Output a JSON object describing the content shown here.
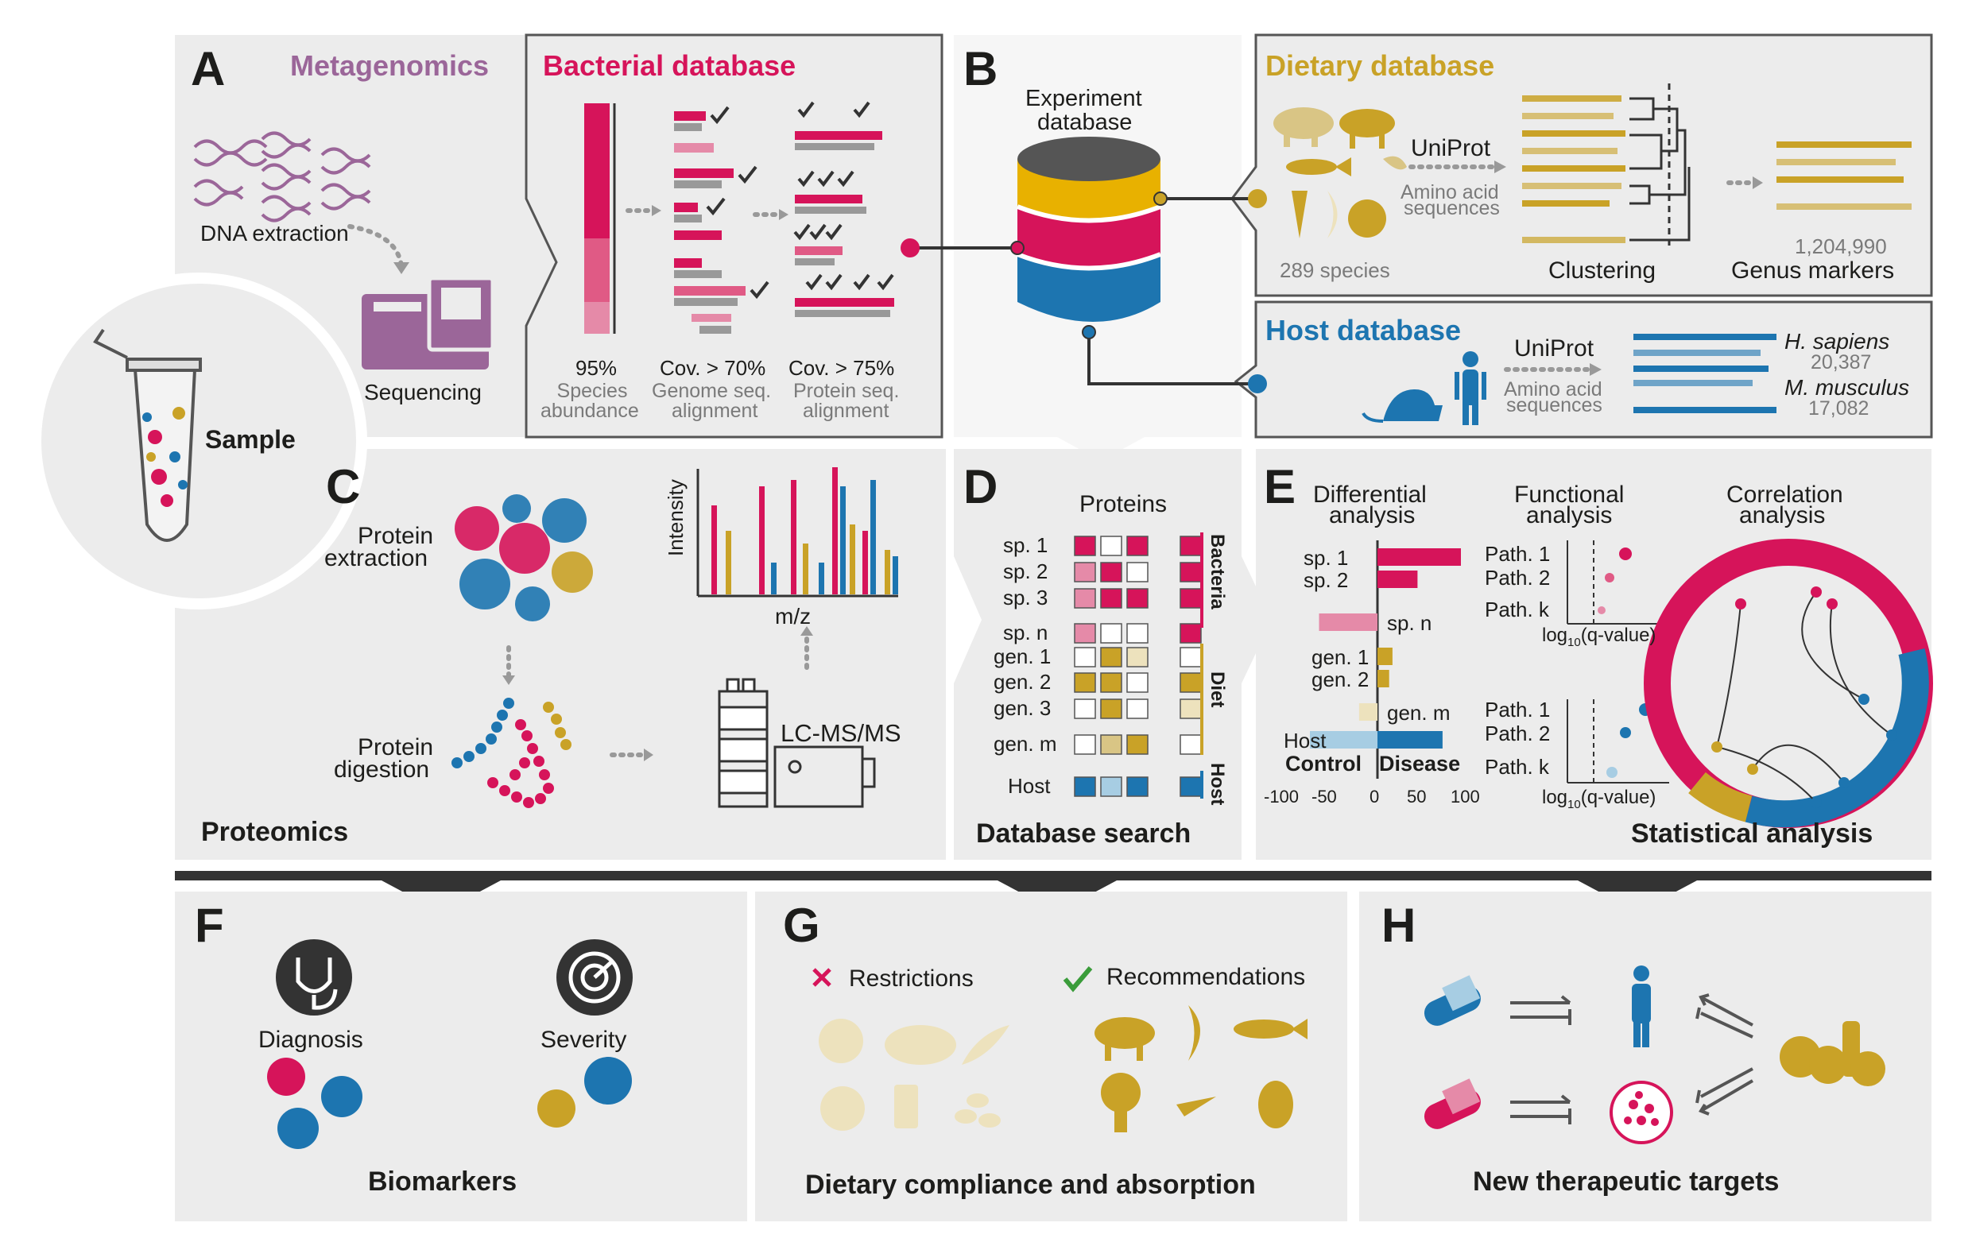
{
  "panels": {
    "A": {
      "letter": "A",
      "metagenomics": "Metagenomics",
      "dna_extraction": "DNA extraction",
      "sequencing": "Sequencing",
      "bacterial_database": "Bacterial database",
      "step1_value": "95%",
      "step1_l1": "Species",
      "step1_l2": "abundance",
      "step2_value": "Cov. > 70%",
      "step2_l1": "Genome seq.",
      "step2_l2": "alignment",
      "step3_value": "Cov. > 75%",
      "step3_l1": "Protein seq.",
      "step3_l2": "alignment"
    },
    "sample": "Sample",
    "B": {
      "letter": "B",
      "experiment_l1": "Experiment",
      "experiment_l2": "database",
      "dietary_database": "Dietary database",
      "uniprot": "UniProt",
      "aa_l1": "Amino acid",
      "aa_l2": "sequences",
      "species_count": "289 species",
      "clustering": "Clustering",
      "markers_count": "1,204,990",
      "genus_markers": "Genus markers",
      "host_database": "Host database",
      "host_uniprot": "UniProt",
      "host_aa_l1": "Amino acid",
      "host_aa_l2": "sequences",
      "h_sapiens": "H. sapiens",
      "h_sapiens_count": "20,387",
      "m_musculus": "M. musculus",
      "m_musculus_count": "17,082"
    },
    "C": {
      "letter": "C",
      "protein_extraction_l1": "Protein",
      "protein_extraction_l2": "extraction",
      "protein_digestion_l1": "Protein",
      "protein_digestion_l2": "digestion",
      "intensity": "Intensity",
      "mz": "m/z",
      "lcms": "LC-MS/MS",
      "proteomics": "Proteomics"
    },
    "D": {
      "letter": "D",
      "proteins": "Proteins",
      "rows_bacteria": [
        "sp. 1",
        "sp. 2",
        "sp. 3",
        "sp. n"
      ],
      "rows_diet": [
        "gen. 1",
        "gen. 2",
        "gen. 3",
        "gen. m"
      ],
      "row_host": "Host",
      "side_bacteria": "Bacteria",
      "side_diet": "Diet",
      "side_host": "Host",
      "database_search": "Database search"
    },
    "E": {
      "letter": "E",
      "diff_l1": "Differential",
      "diff_l2": "analysis",
      "func_l1": "Functional",
      "func_l2": "analysis",
      "corr_l1": "Correlation",
      "corr_l2": "analysis",
      "diff_rows": [
        "sp. 1",
        "sp. 2",
        "sp. n",
        "gen. 1",
        "gen. 2",
        "gen. m",
        "Host"
      ],
      "control": "Control",
      "disease": "Disease",
      "ticks": [
        "-100",
        "-50",
        "0",
        "50",
        "100"
      ],
      "path_top": [
        "Path. 1",
        "Path. 2",
        "Path. k"
      ],
      "path_bottom": [
        "Path. 1",
        "Path. 2",
        "Path. k"
      ],
      "xlabel_prefix": "log",
      "xlabel_sub": "10",
      "xlabel_suffix": "(q-value)",
      "statistical_analysis": "Statistical analysis"
    },
    "F": {
      "letter": "F",
      "diagnosis": "Diagnosis",
      "severity": "Severity",
      "title": "Biomarkers"
    },
    "G": {
      "letter": "G",
      "restrictions": "Restrictions",
      "recommendations": "Recommendations",
      "title": "Dietary compliance and absorption"
    },
    "H": {
      "letter": "H",
      "title": "New therapeutic targets"
    }
  },
  "colors": {
    "magenta": "#d6145a",
    "pink": "#e58aa8",
    "gold": "#c9a227",
    "lightgold": "#ede2bd",
    "blue": "#1d75b0",
    "lightblue": "#a7cde3",
    "purple": "#9b6699",
    "gray_panel": "#ececec",
    "dark": "#1d1d1b"
  },
  "chart_data": [
    {
      "type": "bar",
      "orientation": "horizontal",
      "categories": [
        "sp. 1",
        "sp. 2",
        "sp. n",
        "gen. 1",
        "gen. 2",
        "gen. m",
        "Host"
      ],
      "values": [
        100,
        48,
        -70,
        18,
        14,
        -22,
        78
      ],
      "xlabel": "",
      "xlim": [
        -100,
        100
      ],
      "ticks": [
        -100,
        -50,
        0,
        50,
        100
      ]
    },
    {
      "type": "scatter",
      "categories": [
        "Path. 1",
        "Path. 2",
        "Path. k"
      ],
      "values": [
        0.9,
        0.6,
        0.4
      ],
      "xlabel": "log10(q-value)"
    },
    {
      "type": "scatter",
      "categories": [
        "Path. 1",
        "Path. 2",
        "Path. k"
      ],
      "values": [
        1.0,
        0.8,
        0.6
      ],
      "xlabel": "log10(q-value)"
    },
    {
      "type": "bar",
      "xlabel": "m/z",
      "ylabel": "Intensity",
      "values": [
        0.7,
        0.5,
        0.85,
        0.25,
        0.9,
        0.4,
        0.25,
        1.0,
        0.85,
        0.55,
        0.5,
        0.9,
        0.35,
        0.3
      ]
    }
  ]
}
